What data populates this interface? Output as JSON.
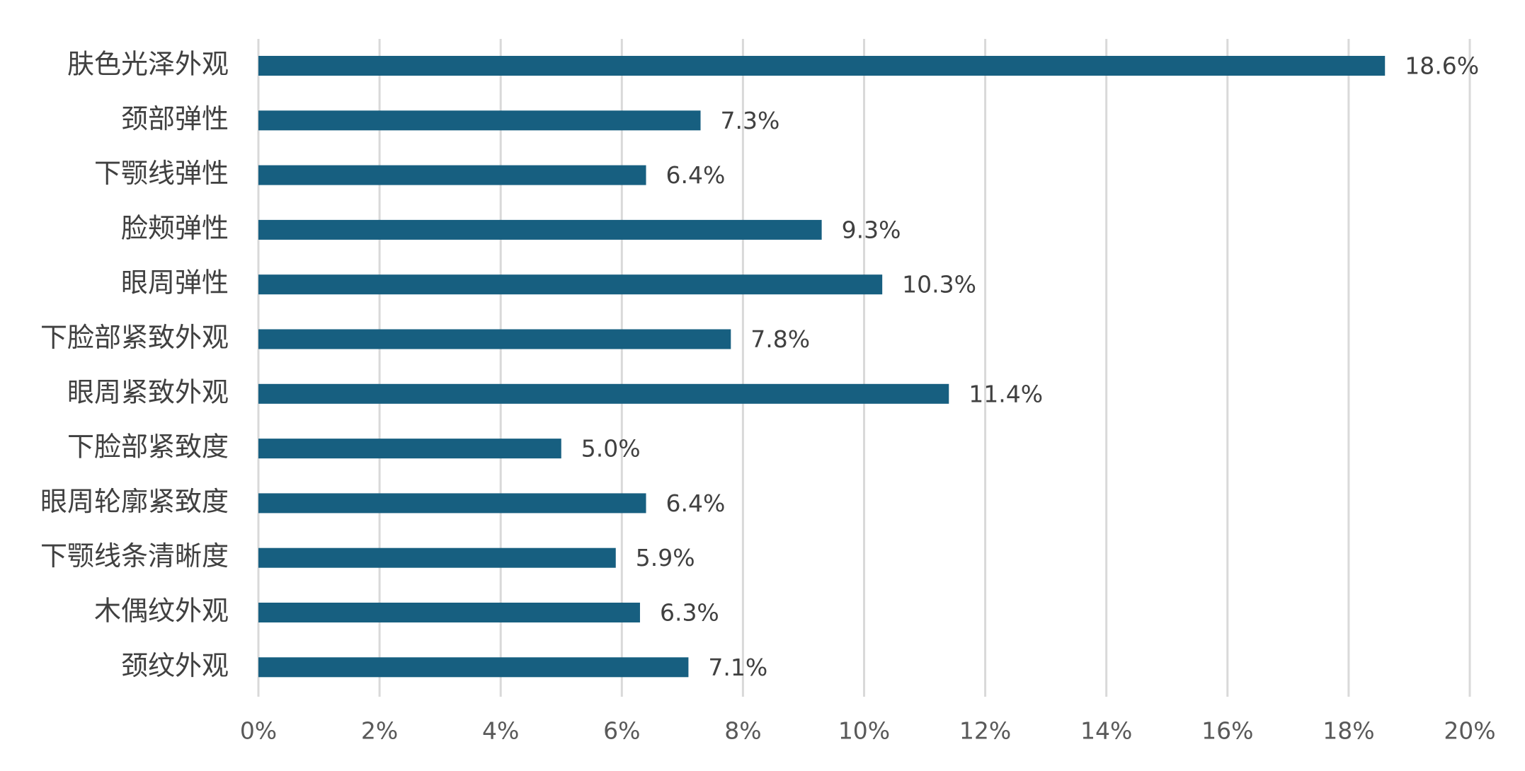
{
  "chart_data": {
    "type": "bar",
    "orientation": "horizontal",
    "title": "",
    "xlabel": "",
    "ylabel": "",
    "categories": [
      "肤色光泽外观",
      "颈部弹性",
      "下颚线弹性",
      "脸颊弹性",
      "眼周弹性",
      "下脸部紧致外观",
      "眼周紧致外观",
      "下脸部紧致度",
      "眼周轮廓紧致度",
      "下颚线条清晰度",
      "木偶纹外观",
      "颈纹外观"
    ],
    "values": [
      18.6,
      7.3,
      6.4,
      9.3,
      10.3,
      7.8,
      11.4,
      5.0,
      6.4,
      5.9,
      6.3,
      7.1
    ],
    "value_labels": [
      "18.6%",
      "7.3%",
      "6.4%",
      "9.3%",
      "10.3%",
      "7.8%",
      "11.4%",
      "5.0%",
      "6.4%",
      "5.9%",
      "6.3%",
      "7.1%"
    ],
    "xlim": [
      0,
      20
    ],
    "x_ticks": [
      "0%",
      "2%",
      "4%",
      "6%",
      "8%",
      "10%",
      "12%",
      "14%",
      "16%",
      "18%",
      "20%"
    ],
    "grid": "vertical",
    "legend": "none",
    "colors": {
      "bar": "#175f80",
      "grid": "#d9d9d9",
      "category_text": "#404040",
      "value_text": "#404040",
      "tick_text": "#595959"
    }
  }
}
